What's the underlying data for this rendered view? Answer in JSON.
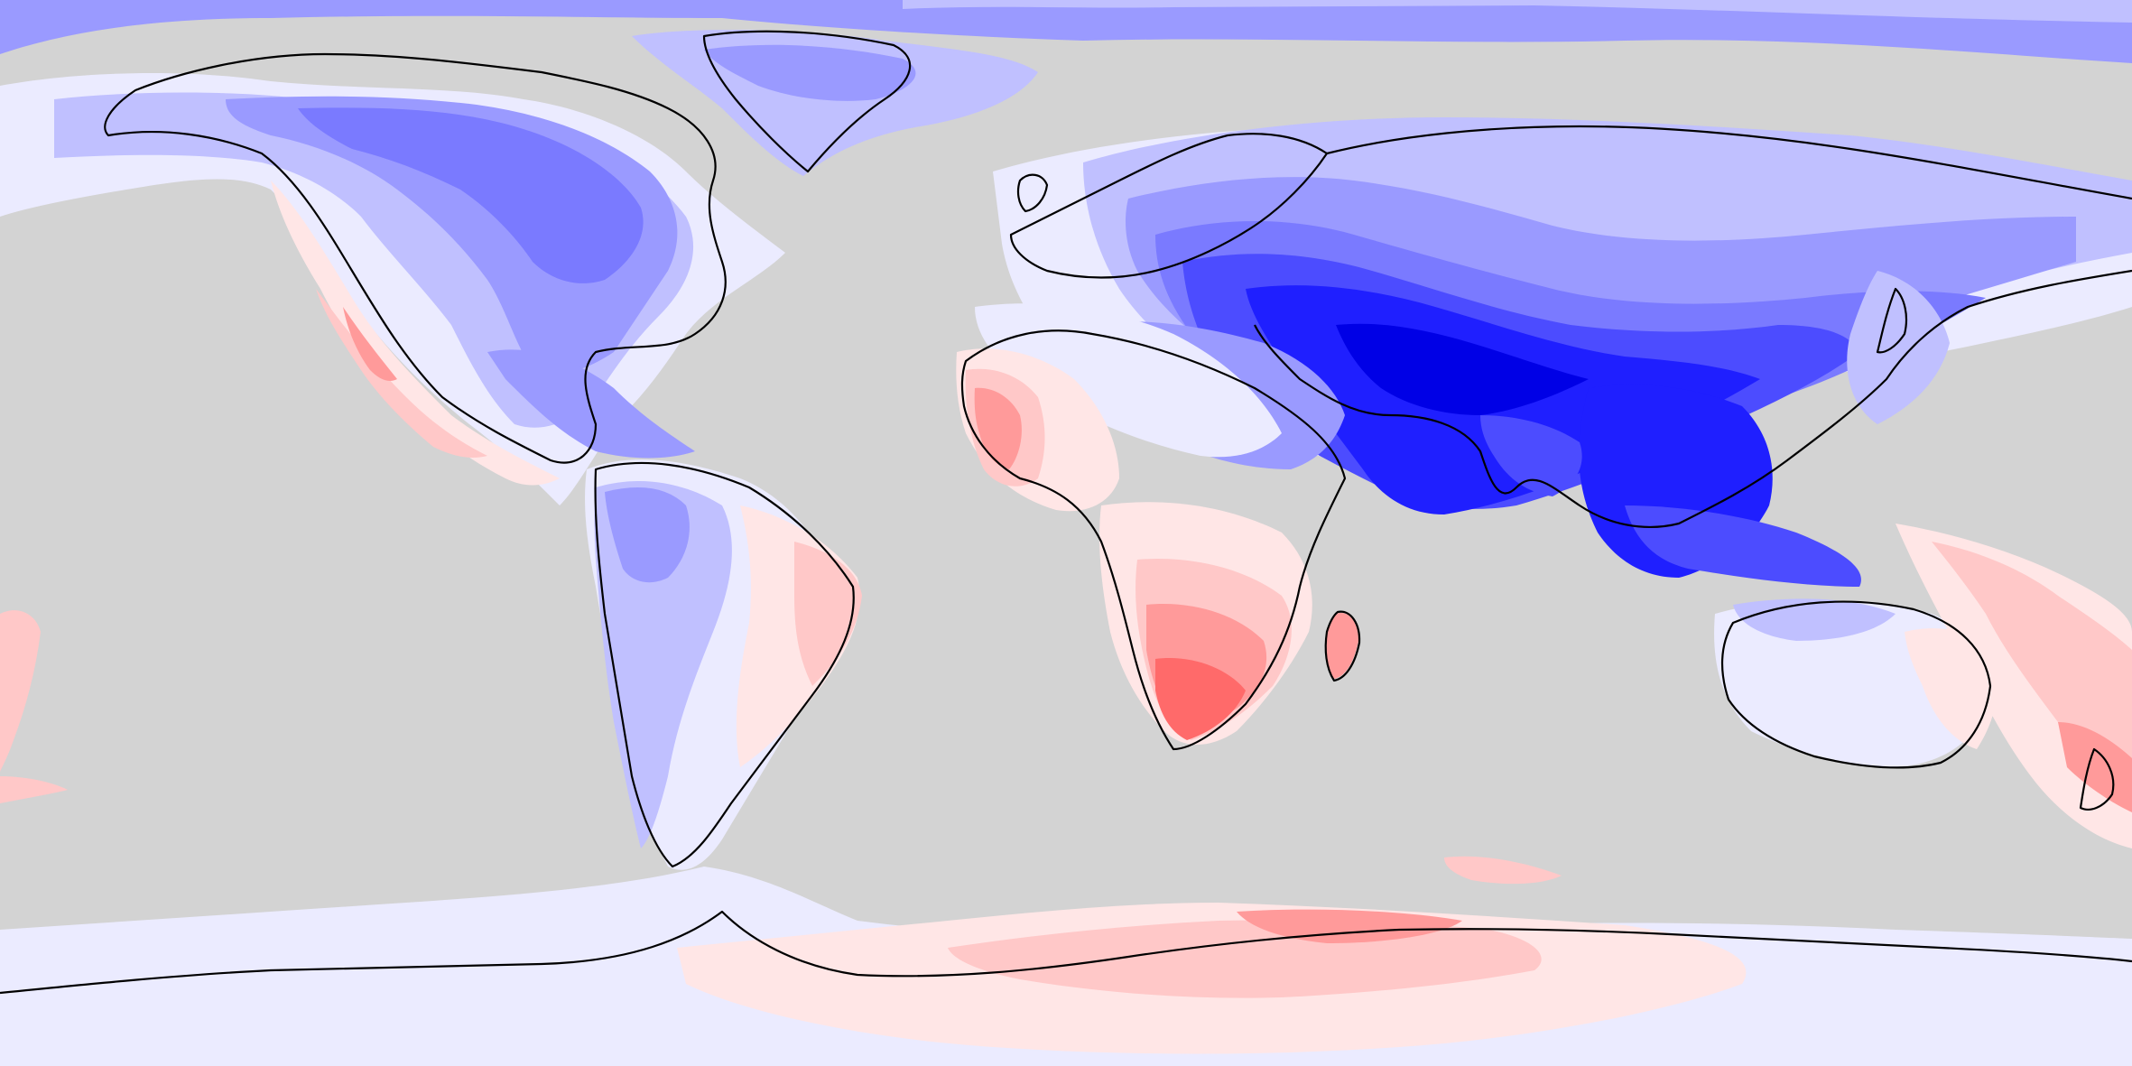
{
  "map": {
    "projection": "equirectangular",
    "background_color": "#d3d3d3",
    "coastline_color": "#000000",
    "palette": {
      "blue_1": "#ebebff",
      "blue_2": "#c0c0ff",
      "blue_3": "#9a9aff",
      "blue_4": "#7a7aff",
      "blue_5": "#4c4cff",
      "blue_6": "#1f1fff",
      "blue_7": "#0000e6",
      "red_1": "#ffe6e6",
      "red_2": "#ffc8c8",
      "red_3": "#ff9a9a",
      "red_4": "#ff6a6a"
    }
  }
}
